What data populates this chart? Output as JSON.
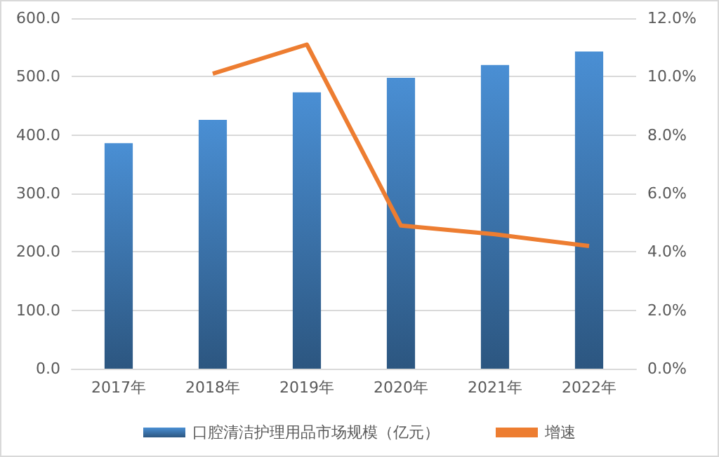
{
  "chart_data": {
    "type": "bar",
    "categories": [
      "2017年",
      "2018年",
      "2019年",
      "2020年",
      "2021年",
      "2022年"
    ],
    "series": [
      {
        "name": "口腔清洁护理用品市场规模（亿元）",
        "color": "#4a8fd4",
        "values": [
          386,
          426,
          473,
          498,
          520,
          543
        ]
      },
      {
        "name": "增速",
        "type": "line",
        "axis": "y2",
        "color": "#ed7d31",
        "values": [
          null,
          10.1,
          11.1,
          4.9,
          4.6,
          4.2
        ]
      }
    ],
    "ylim": [
      0,
      600
    ],
    "yticks": [
      {
        "value": 0,
        "label": "0.0"
      },
      {
        "value": 100,
        "label": "100.0"
      },
      {
        "value": 200,
        "label": "200.0"
      },
      {
        "value": 300,
        "label": "300.0"
      },
      {
        "value": 400,
        "label": "400.0"
      },
      {
        "value": 500,
        "label": "500.0"
      },
      {
        "value": 600,
        "label": "600.0"
      }
    ],
    "y2lim": [
      0,
      12
    ],
    "y2ticks": [
      {
        "value": 0,
        "label": "0.0%"
      },
      {
        "value": 2,
        "label": "2.0%"
      },
      {
        "value": 4,
        "label": "4.0%"
      },
      {
        "value": 6,
        "label": "6.0%"
      },
      {
        "value": 8,
        "label": "8.0%"
      },
      {
        "value": 10,
        "label": "10.0%"
      },
      {
        "value": 12,
        "label": "12.0%"
      }
    ],
    "grid": "y",
    "legend": "bottom",
    "marker": "none"
  }
}
